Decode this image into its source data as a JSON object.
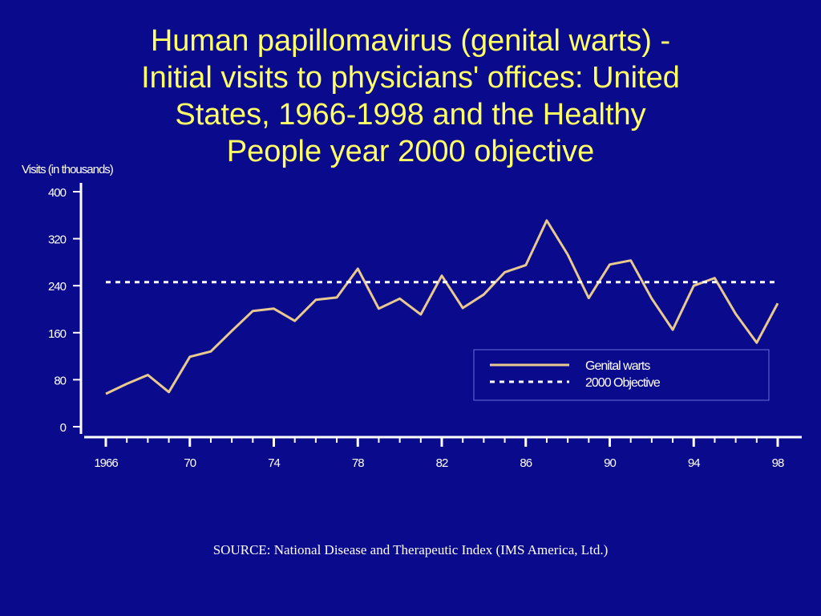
{
  "slide": {
    "title_lines": [
      "Human papillomavirus (genital warts) -",
      "Initial visits to physicians' offices: United",
      "States, 1966-1998 and the Healthy",
      "People year 2000 objective"
    ],
    "source": "SOURCE: National Disease and Therapeutic Index (IMS America, Ltd.)"
  },
  "colors": {
    "background": "#0a0a8c",
    "title": "#ffff66",
    "series": "#e8c98f",
    "objective": "#ffffff",
    "axis": "#ffffff"
  },
  "chart_data": {
    "type": "line",
    "ylabel": "Visits (in thousands)",
    "xlabel": "",
    "ylim": [
      0,
      400
    ],
    "yticks": [
      0,
      80,
      160,
      240,
      320,
      400
    ],
    "xlim": [
      1966,
      1998
    ],
    "xticks": [
      {
        "value": 1966,
        "label": "1966"
      },
      {
        "value": 1970,
        "label": "70"
      },
      {
        "value": 1974,
        "label": "74"
      },
      {
        "value": 1978,
        "label": "78"
      },
      {
        "value": 1982,
        "label": "82"
      },
      {
        "value": 1986,
        "label": "86"
      },
      {
        "value": 1990,
        "label": "90"
      },
      {
        "value": 1994,
        "label": "94"
      },
      {
        "value": 1998,
        "label": "98"
      }
    ],
    "legend_position": "lower-right",
    "series": [
      {
        "name": "Genital warts",
        "style": "solid",
        "x": [
          1966,
          1967,
          1968,
          1969,
          1970,
          1971,
          1972,
          1973,
          1974,
          1975,
          1976,
          1977,
          1978,
          1979,
          1980,
          1981,
          1982,
          1983,
          1984,
          1985,
          1986,
          1987,
          1988,
          1989,
          1990,
          1991,
          1992,
          1993,
          1994,
          1995,
          1996,
          1997,
          1998
        ],
        "values": [
          56,
          73,
          88,
          59,
          119,
          128,
          163,
          197,
          201,
          180,
          216,
          220,
          269,
          201,
          218,
          191,
          257,
          202,
          225,
          263,
          275,
          351,
          293,
          219,
          276,
          283,
          218,
          165,
          240,
          253,
          192,
          143,
          210
        ]
      },
      {
        "name": "2000 Objective",
        "style": "dotted",
        "x": [
          1966,
          1998
        ],
        "values": [
          246,
          246
        ]
      }
    ]
  }
}
